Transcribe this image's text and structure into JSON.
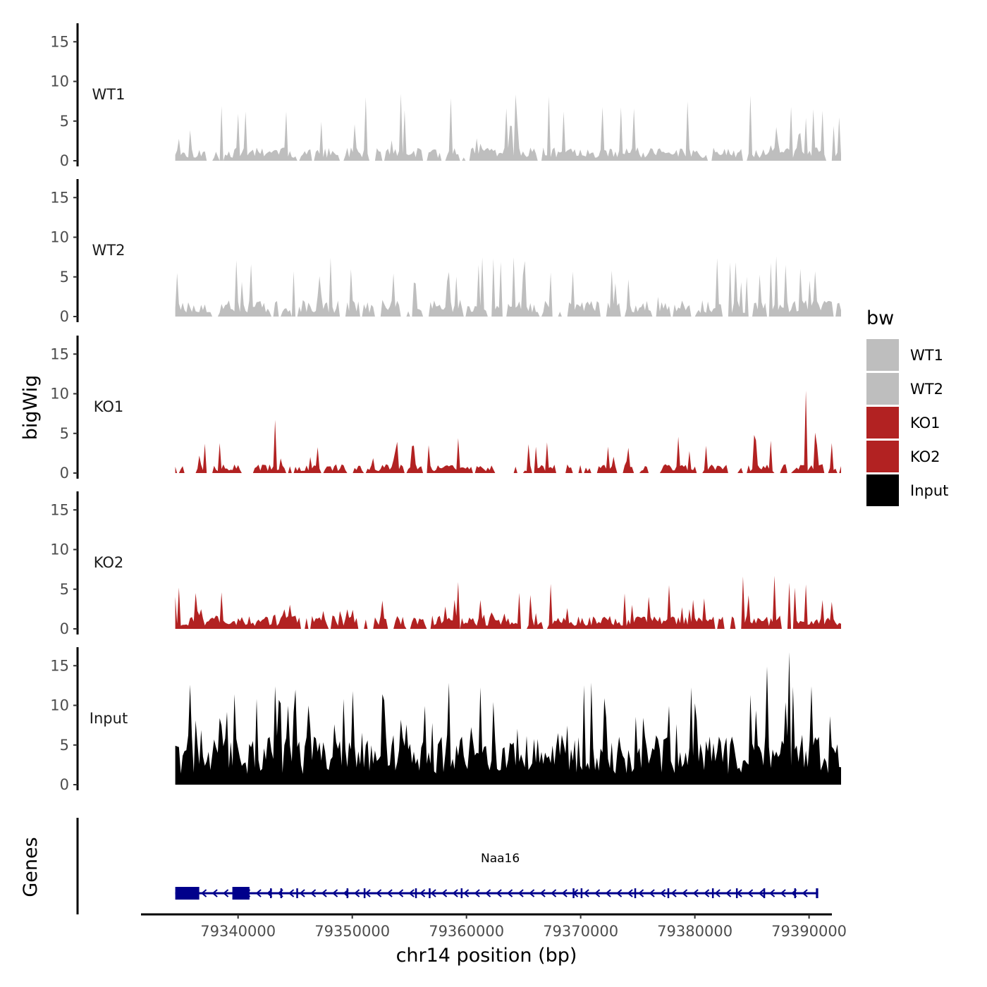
{
  "chart_data": {
    "type": "area",
    "chromosome": "chr14",
    "y_axis_title": "bigWig",
    "gene_panel_title": "Genes",
    "x_axis_title": "chr14 position (bp)",
    "xlim": [
      79331500,
      79392000
    ],
    "x_ticks": [
      79340000,
      79350000,
      79360000,
      79370000,
      79380000,
      79390000
    ],
    "x_tick_labels": [
      "79340000",
      "79350000",
      "79360000",
      "79370000",
      "79380000",
      "79390000"
    ],
    "y_ticks": [
      0,
      5,
      10,
      15
    ],
    "y_tick_labels": [
      "0",
      "5",
      "10",
      "15"
    ],
    "ylim": [
      0,
      17
    ],
    "data_start": 79334500,
    "data_end": 79392800,
    "legend": {
      "title": "bw",
      "entries": [
        {
          "label": "WT1",
          "color": "#bebebe"
        },
        {
          "label": "WT2",
          "color": "#bebebe"
        },
        {
          "label": "KO1",
          "color": "#b22222"
        },
        {
          "label": "KO2",
          "color": "#b22222"
        },
        {
          "label": "Input",
          "color": "#000000"
        }
      ]
    },
    "tracks": [
      {
        "name": "WT1",
        "label": "WT1",
        "color": "#bebebe",
        "seed": 11,
        "base": 1.2,
        "peak_max": 7.3,
        "peak_prob": 0.13,
        "gap_prob": 0.05,
        "spikes": [
          [
            79338500,
            6.9
          ],
          [
            79344200,
            6.2
          ],
          [
            79358600,
            7.9
          ],
          [
            79363500,
            6.6
          ],
          [
            79368500,
            6.2
          ],
          [
            79388500,
            6.8
          ],
          [
            79390400,
            6.5
          ],
          [
            79391200,
            6.3
          ]
        ]
      },
      {
        "name": "WT2",
        "label": "WT2",
        "color": "#bebebe",
        "seed": 23,
        "base": 1.5,
        "peak_max": 6.0,
        "peak_prob": 0.13,
        "gap_prob": 0.05,
        "spikes": [
          [
            79334700,
            5.5
          ],
          [
            79344800,
            5.7
          ],
          [
            79361000,
            6.5
          ],
          [
            79362300,
            7.3
          ],
          [
            79363000,
            6.9
          ],
          [
            79387100,
            7.6
          ],
          [
            79388000,
            6.5
          ],
          [
            79389200,
            6.0
          ]
        ]
      },
      {
        "name": "KO1",
        "label": "KO1",
        "color": "#b22222",
        "seed": 37,
        "base": 0.8,
        "peak_max": 3.8,
        "peak_prob": 0.14,
        "gap_prob": 0.12,
        "spikes": [
          [
            79343300,
            6.7
          ],
          [
            79359200,
            4.4
          ],
          [
            79385200,
            4.8
          ],
          [
            79389800,
            10.4
          ],
          [
            79390500,
            5.1
          ]
        ]
      },
      {
        "name": "KO2",
        "label": "KO2",
        "color": "#b22222",
        "seed": 53,
        "base": 1.2,
        "peak_max": 4.5,
        "peak_prob": 0.13,
        "gap_prob": 0.05,
        "spikes": [
          [
            79334900,
            5.2
          ],
          [
            79359300,
            5.9
          ],
          [
            79384200,
            6.6
          ],
          [
            79386900,
            6.7
          ],
          [
            79388300,
            5.8
          ],
          [
            79389800,
            5.6
          ]
        ]
      },
      {
        "name": "Input",
        "label": "Input",
        "color": "#000000",
        "seed": 71,
        "base": 4.5,
        "peak_max": 8.5,
        "peak_prob": 0.16,
        "gap_prob": 0.0,
        "spikes": [
          [
            79335800,
            12.6
          ],
          [
            79339700,
            11.4
          ],
          [
            79343300,
            12.4
          ],
          [
            79349300,
            10.8
          ],
          [
            79352800,
            10.6
          ],
          [
            79372000,
            10.9
          ],
          [
            79384900,
            11.3
          ],
          [
            79386400,
            14.9
          ],
          [
            79388200,
            16.7
          ],
          [
            79390200,
            12.4
          ]
        ]
      }
    ],
    "gene": {
      "name": "Naa16",
      "strand": "-",
      "color": "#00008b",
      "start": 79334500,
      "end": 79390800,
      "exons": [
        [
          79334500,
          79336600
        ],
        [
          79339500,
          79341000
        ],
        [
          79342800,
          79342950
        ],
        [
          79343700,
          79343850
        ],
        [
          79345100,
          79345250
        ],
        [
          79349500,
          79349650
        ],
        [
          79351000,
          79351150
        ],
        [
          79355500,
          79355650
        ],
        [
          79356700,
          79356850
        ],
        [
          79359500,
          79359650
        ],
        [
          79369300,
          79369450
        ],
        [
          79370000,
          79370150
        ],
        [
          79374700,
          79374850
        ],
        [
          79377600,
          79377750
        ],
        [
          79381500,
          79381650
        ],
        [
          79383600,
          79383750
        ],
        [
          79386000,
          79386150
        ],
        [
          79388700,
          79388850
        ],
        [
          79390600,
          79390800
        ]
      ]
    }
  }
}
